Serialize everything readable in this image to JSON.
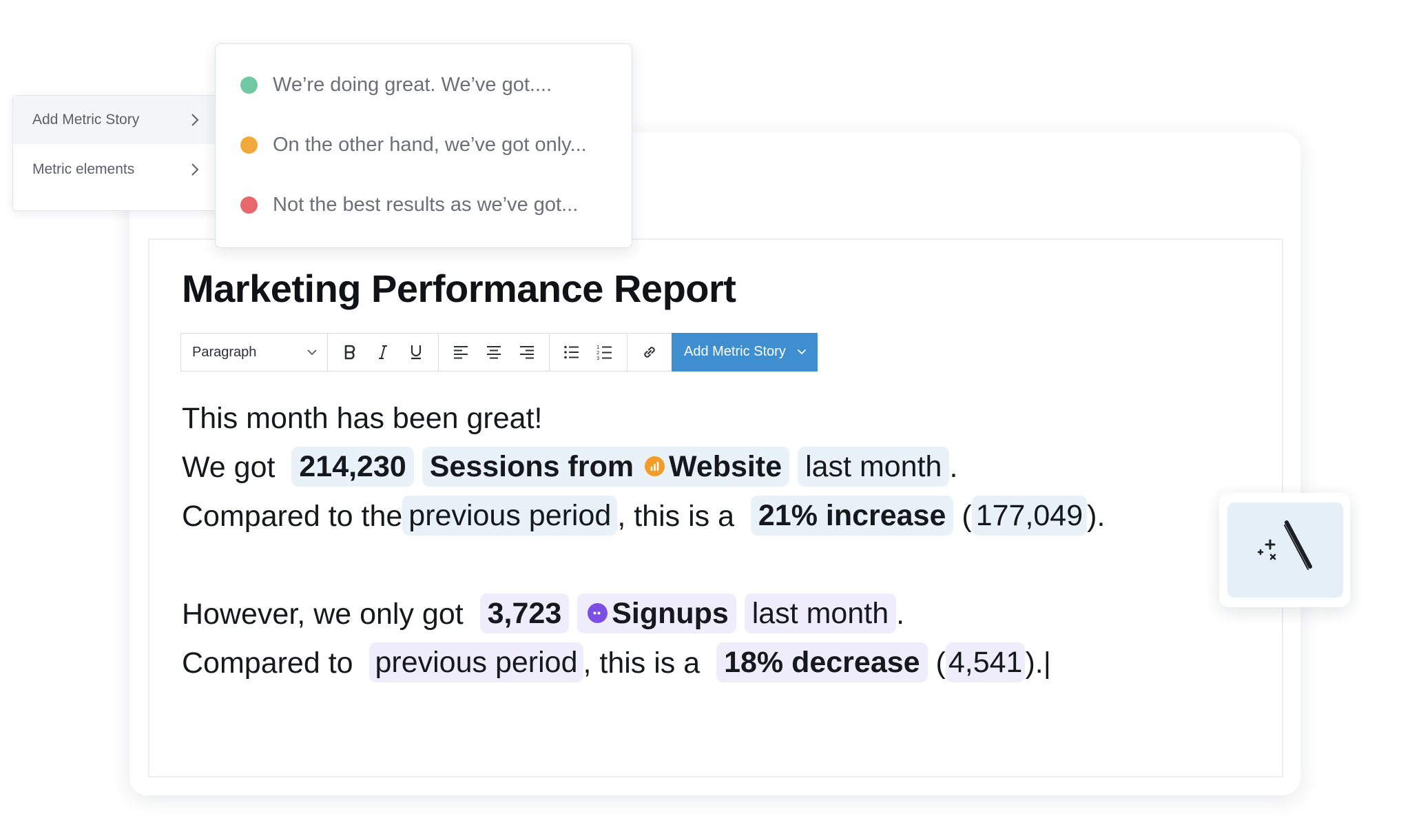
{
  "menu": {
    "items": [
      {
        "label": "Add Metric Story"
      },
      {
        "label": "Metric elements"
      }
    ]
  },
  "story_options": [
    {
      "label": "We’re doing great. We’ve got....",
      "color": "#6fcaa4"
    },
    {
      "label": "On the other hand, we’ve got only...",
      "color": "#f2a93b"
    },
    {
      "label": "Not the best results as we’ve got...",
      "color": "#e8696b"
    }
  ],
  "document": {
    "title": "Marketing Performance Report"
  },
  "toolbar": {
    "paragraph_style": "Paragraph",
    "add_story_label": "Add Metric Story"
  },
  "content": {
    "line1": "This month has been great!",
    "line2": {
      "prefix": "We got",
      "value": "214,230",
      "metric_prefix": "Sessions from",
      "source": "Website",
      "period": "last month",
      "suffix": "."
    },
    "line3": {
      "prefix": "Compared to the",
      "period": "previous period",
      "middle": ", this is a",
      "change": "21% increase",
      "open": "(",
      "prev_value": "177,049",
      "close": ")."
    },
    "line4": {
      "prefix": "However, we only got",
      "value": "3,723",
      "metric": "Signups",
      "period": "last month",
      "suffix": "."
    },
    "line5": {
      "prefix": "Compared to",
      "period": "previous period",
      "middle": ", this is a",
      "change": "18% decrease",
      "open": "(",
      "prev_value": "4,541",
      "close": ").",
      "cursor": "|"
    }
  }
}
